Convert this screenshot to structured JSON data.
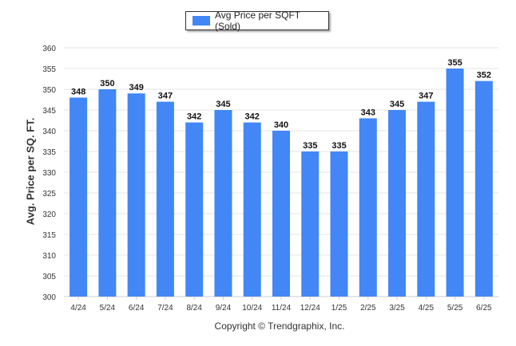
{
  "chart_data": {
    "type": "bar",
    "categories": [
      "4/24",
      "5/24",
      "6/24",
      "7/24",
      "8/24",
      "9/24",
      "10/24",
      "11/24",
      "12/24",
      "1/25",
      "2/25",
      "3/25",
      "4/25",
      "5/25",
      "6/25"
    ],
    "series": [
      {
        "name": "Avg Price per SQFT (Sold)",
        "values": [
          348,
          350,
          349,
          347,
          342,
          345,
          342,
          340,
          335,
          335,
          343,
          345,
          347,
          355,
          352
        ]
      }
    ],
    "ylabel": "Avg. Price per SQ. FT.",
    "ylim": [
      300,
      360
    ],
    "yticks": [
      300,
      305,
      310,
      315,
      320,
      325,
      330,
      335,
      340,
      345,
      350,
      355,
      360
    ],
    "legend_position": "top-center",
    "grid": true,
    "bar_color": "#4287f5",
    "data_labels": true
  },
  "footer": {
    "copyright": "Copyright © Trendgraphix, Inc."
  }
}
